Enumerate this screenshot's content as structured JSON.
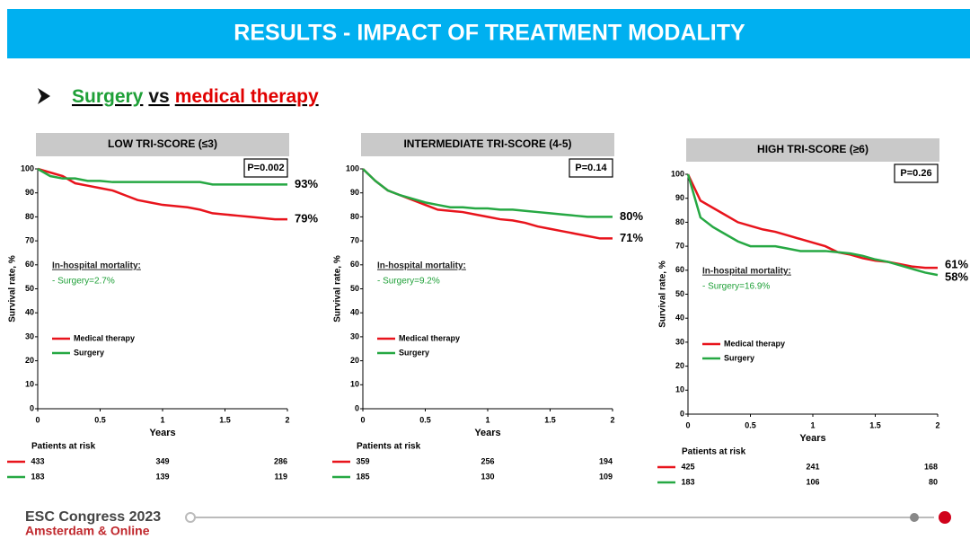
{
  "header": {
    "title": "RESULTS - IMPACT OF TREATMENT MODALITY"
  },
  "subtitle": {
    "lead": "Surgery",
    "mid": "vs",
    "tail": "medical therapy"
  },
  "footer": {
    "line1": "ESC Congress 2023",
    "line2": "Amsterdam & Online"
  },
  "chart_data": [
    {
      "type": "line",
      "title": "LOW TRI-SCORE (≤3)",
      "p_value": "P=0.002",
      "xlabel": "Years",
      "ylabel": "Survival rate, %",
      "xlim": [
        0,
        2
      ],
      "ylim": [
        0,
        100
      ],
      "xticks": [
        0,
        0.5,
        1,
        1.5,
        2
      ],
      "yticks": [
        0,
        10,
        20,
        30,
        40,
        50,
        60,
        70,
        80,
        90,
        100
      ],
      "x": [
        0,
        0.1,
        0.2,
        0.3,
        0.4,
        0.5,
        0.6,
        0.7,
        0.8,
        0.9,
        1,
        1.1,
        1.2,
        1.3,
        1.4,
        1.5,
        1.6,
        1.7,
        1.8,
        1.9,
        2
      ],
      "series": [
        {
          "name": "Medical therapy",
          "color": "#e8141c",
          "end_label": "79%",
          "values": [
            100,
            98.5,
            97,
            94,
            93,
            92,
            91,
            89,
            87,
            86,
            85,
            84.5,
            84,
            83,
            81.5,
            81,
            80.5,
            80,
            79.5,
            79,
            79
          ]
        },
        {
          "name": "Surgery",
          "color": "#26a843",
          "end_label": "93%",
          "values": [
            100,
            97,
            96,
            96,
            95,
            95,
            94.5,
            94.5,
            94.5,
            94.5,
            94.5,
            94.5,
            94.5,
            94.5,
            93.5,
            93.5,
            93.5,
            93.5,
            93.5,
            93.5,
            93.5
          ]
        }
      ],
      "mortality_title": "In-hospital mortality:",
      "mortality_text": "- Surgery=2.7%",
      "risk_table": {
        "title": "Patients at risk",
        "rows": [
          [
            433,
            349,
            286
          ],
          [
            183,
            139,
            119
          ]
        ]
      }
    },
    {
      "type": "line",
      "title": "INTERMEDIATE TRI-SCORE (4-5)",
      "p_value": "P=0.14",
      "xlabel": "Years",
      "ylabel": "Survival rate, %",
      "xlim": [
        0,
        2
      ],
      "ylim": [
        0,
        100
      ],
      "xticks": [
        0,
        0.5,
        1,
        1.5,
        2
      ],
      "yticks": [
        0,
        10,
        20,
        30,
        40,
        50,
        60,
        70,
        80,
        90,
        100
      ],
      "x": [
        0,
        0.1,
        0.2,
        0.3,
        0.4,
        0.5,
        0.6,
        0.7,
        0.8,
        0.9,
        1,
        1.1,
        1.2,
        1.3,
        1.4,
        1.5,
        1.6,
        1.7,
        1.8,
        1.9,
        2
      ],
      "series": [
        {
          "name": "Medical therapy",
          "color": "#e8141c",
          "end_label": "71%",
          "values": [
            100,
            95,
            91,
            89,
            87,
            85,
            83,
            82.5,
            82,
            81,
            80,
            79,
            78.5,
            77.5,
            76,
            75,
            74,
            73,
            72,
            71,
            71
          ]
        },
        {
          "name": "Surgery",
          "color": "#26a843",
          "end_label": "80%",
          "values": [
            100,
            95,
            91,
            89,
            87.5,
            86,
            85,
            84,
            84,
            83.5,
            83.5,
            83,
            83,
            82.5,
            82,
            81.5,
            81,
            80.5,
            80,
            80,
            80
          ]
        }
      ],
      "mortality_title": "In-hospital mortality:",
      "mortality_text": "- Surgery=9.2%",
      "risk_table": {
        "title": "Patients at risk",
        "rows": [
          [
            359,
            256,
            194
          ],
          [
            185,
            130,
            109
          ]
        ]
      }
    },
    {
      "type": "line",
      "title": "HIGH TRI-SCORE (≥6)",
      "p_value": "P=0.26",
      "xlabel": "Years",
      "ylabel": "Survival rate, %",
      "xlim": [
        0,
        2
      ],
      "ylim": [
        0,
        100
      ],
      "xticks": [
        0,
        0.5,
        1,
        1.5,
        2
      ],
      "yticks": [
        0,
        10,
        20,
        30,
        40,
        50,
        60,
        70,
        80,
        90,
        100
      ],
      "x": [
        0,
        0.1,
        0.2,
        0.3,
        0.4,
        0.5,
        0.6,
        0.7,
        0.8,
        0.9,
        1,
        1.1,
        1.2,
        1.3,
        1.4,
        1.5,
        1.6,
        1.7,
        1.8,
        1.9,
        2
      ],
      "series": [
        {
          "name": "Medical therapy",
          "color": "#e8141c",
          "end_label": "61%",
          "values": [
            100,
            89,
            86,
            83,
            80,
            78.5,
            77,
            76,
            74.5,
            73,
            71.5,
            70,
            67.5,
            66.5,
            65,
            64,
            63.5,
            62.5,
            61.5,
            61,
            61
          ]
        },
        {
          "name": "Surgery",
          "color": "#26a843",
          "end_label": "58%",
          "values": [
            100,
            82,
            78,
            75,
            72,
            70,
            70,
            70,
            69,
            68,
            68,
            68,
            67.5,
            67,
            66,
            64.5,
            63.5,
            62,
            60.5,
            59,
            58
          ]
        }
      ],
      "mortality_title": "In-hospital mortality:",
      "mortality_text": "- Surgery=16.9%",
      "risk_table": {
        "title": "Patients at risk",
        "rows": [
          [
            425,
            241,
            168
          ],
          [
            183,
            106,
            80
          ]
        ]
      }
    }
  ]
}
